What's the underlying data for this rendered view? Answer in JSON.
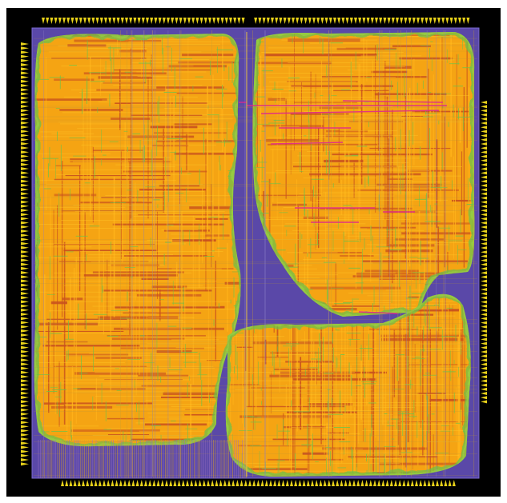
{
  "image": {
    "subject": "chip-layout",
    "colors": {
      "background": "#000000",
      "die": "#5a48a8",
      "pad": "#e8d21a",
      "metal_orange": "#f5a413",
      "metal_red": "#c8501e",
      "metal_green": "#6cc24a",
      "metal_magenta": "#e0288c"
    },
    "regions": [
      {
        "name": "left-block"
      },
      {
        "name": "upper-right-block"
      },
      {
        "name": "lower-right-block"
      }
    ]
  }
}
